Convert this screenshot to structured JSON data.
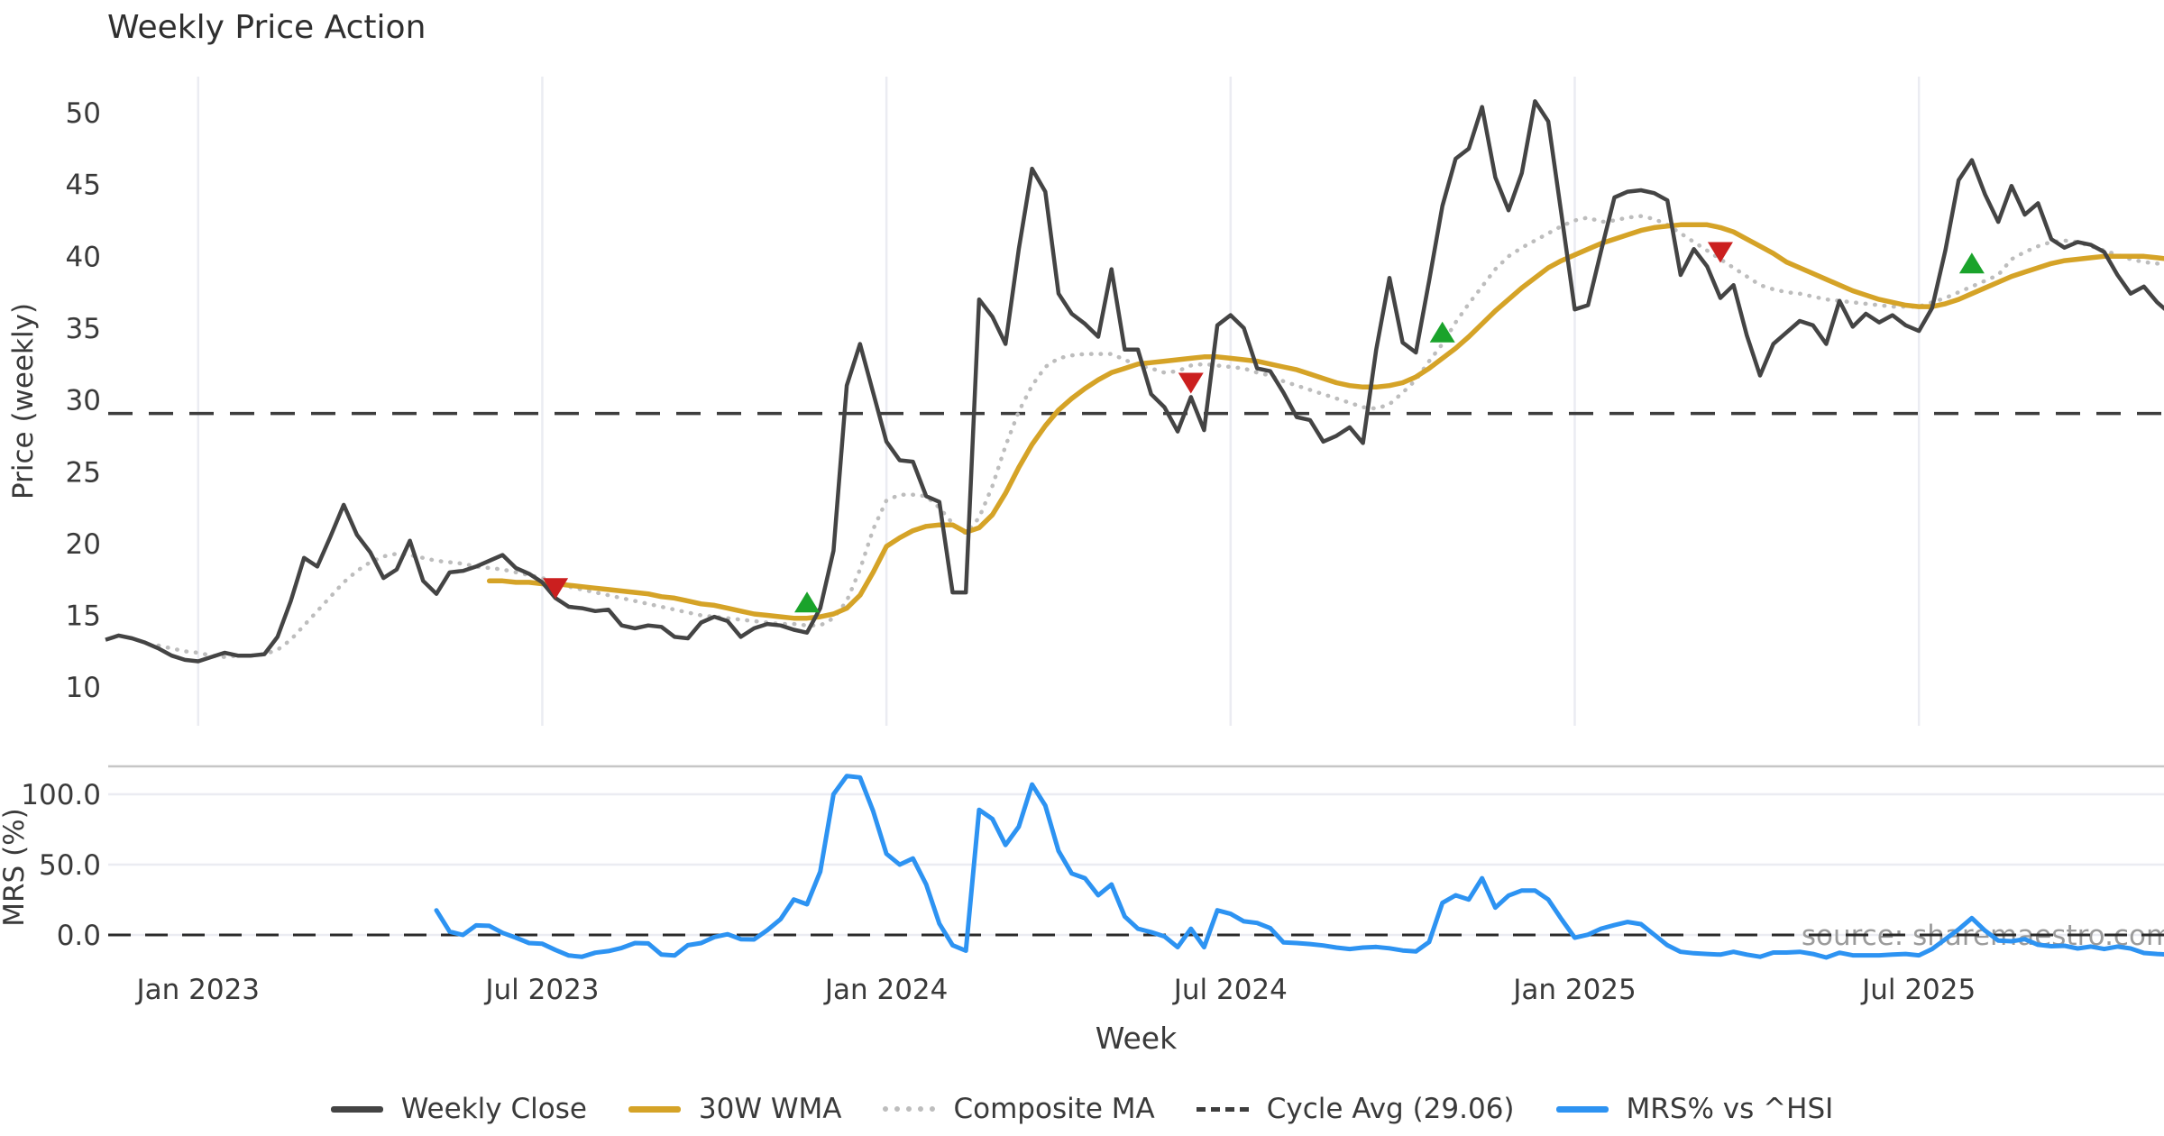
{
  "title": "Weekly Price Action",
  "xlabel": "Week",
  "watermark": "source: sharemaestro.com",
  "colors": {
    "close": "#444444",
    "wma": "#d5a327",
    "composite": "#bdbdbd",
    "cycle": "#3d3d3d",
    "mrs": "#2d93f2",
    "buy": "#1aa32b",
    "sell": "#cb1f1f",
    "grid": "#ebecf2",
    "panel_border": "#c6c6c6",
    "axis_text": "#3a3a3a",
    "watermark_text": "#9b9b9b",
    "title_text": "#2f2f2f"
  },
  "legend": {
    "items": [
      {
        "label": "Weekly Close",
        "swatch": "solid",
        "color_key": "close"
      },
      {
        "label": "30W WMA",
        "swatch": "solid",
        "color_key": "wma"
      },
      {
        "label": "Composite MA",
        "swatch": "dotted",
        "color_key": "composite"
      },
      {
        "label": "Cycle Avg (29.06)",
        "swatch": "dashed",
        "color_key": "cycle"
      },
      {
        "label": "MRS% vs ^HSI",
        "swatch": "solid",
        "color_key": "mrs"
      }
    ]
  },
  "chart_data": [
    {
      "type": "line",
      "panel": "price",
      "title": "Weekly Price Action",
      "ylabel": "Price (weekly)",
      "ylim": [
        9.5,
        52.5
      ],
      "grid": "vertical-only",
      "ytick_values": [
        50,
        45,
        40,
        35,
        30,
        25,
        20,
        15,
        10
      ],
      "xticks": [
        {
          "label": "Jan 2023",
          "week": 7
        },
        {
          "label": "Jul 2023",
          "week": 33
        },
        {
          "label": "Jan 2024",
          "week": 59
        },
        {
          "label": "Jul 2024",
          "week": 85
        },
        {
          "label": "Jan 2025",
          "week": 111
        },
        {
          "label": "Jul 2025",
          "week": 137
        }
      ],
      "cycle_avg": 29.06,
      "series": [
        {
          "name": "Weekly Close",
          "style": "solid",
          "color_key": "close",
          "start_week": 0,
          "values": [
            13.3,
            13.6,
            13.4,
            13.1,
            12.7,
            12.2,
            11.9,
            11.8,
            12.1,
            12.4,
            12.2,
            12.2,
            12.3,
            13.5,
            16.0,
            19.0,
            18.4,
            20.5,
            22.7,
            20.6,
            19.4,
            17.6,
            18.2,
            20.2,
            17.4,
            16.5,
            18.0,
            18.1,
            18.4,
            18.8,
            19.2,
            18.3,
            17.9,
            17.3,
            16.2,
            15.6,
            15.5,
            15.3,
            15.4,
            14.3,
            14.1,
            14.3,
            14.2,
            13.5,
            13.4,
            14.5,
            14.9,
            14.6,
            13.5,
            14.1,
            14.4,
            14.3,
            14.0,
            13.8,
            15.5,
            19.5,
            31.0,
            33.9,
            30.5,
            27.1,
            25.8,
            25.7,
            23.3,
            22.9,
            16.6,
            16.6,
            37.0,
            35.8,
            33.9,
            40.5,
            46.1,
            44.5,
            37.4,
            36.0,
            35.3,
            34.4,
            39.1,
            33.5,
            33.5,
            30.4,
            29.5,
            27.8,
            30.2,
            27.9,
            35.2,
            35.9,
            35.0,
            32.2,
            32.0,
            30.5,
            28.8,
            28.6,
            27.1,
            27.5,
            28.1,
            27.0,
            33.5,
            38.5,
            34.0,
            33.3,
            38.3,
            43.5,
            46.8,
            47.5,
            50.4,
            45.5,
            43.2,
            45.8,
            50.8,
            49.4,
            42.9,
            36.3,
            36.6,
            40.4,
            44.1,
            44.5,
            44.6,
            44.4,
            43.9,
            38.7,
            40.5,
            39.3,
            37.1,
            38.0,
            34.5,
            31.7,
            33.9,
            34.7,
            35.5,
            35.2,
            33.9,
            36.9,
            35.1,
            36.0,
            35.4,
            35.9,
            35.2,
            34.8,
            36.4,
            40.4,
            45.3,
            46.7,
            44.3,
            42.4,
            44.9,
            42.9,
            43.7,
            41.2,
            40.6,
            41.0,
            40.8,
            40.3,
            38.7,
            37.4,
            37.9,
            36.8,
            36.0
          ]
        },
        {
          "name": "30W WMA",
          "style": "solid",
          "color_key": "wma",
          "start_week": 29,
          "values": [
            17.4,
            17.4,
            17.3,
            17.3,
            17.2,
            17.2,
            17.1,
            17.0,
            16.9,
            16.8,
            16.7,
            16.6,
            16.5,
            16.3,
            16.2,
            16.0,
            15.8,
            15.7,
            15.5,
            15.3,
            15.1,
            15.0,
            14.9,
            14.8,
            14.8,
            14.9,
            15.1,
            15.5,
            16.4,
            18.0,
            19.8,
            20.4,
            20.9,
            21.2,
            21.3,
            21.3,
            20.8,
            21.1,
            22.0,
            23.5,
            25.3,
            26.9,
            28.2,
            29.3,
            30.1,
            30.8,
            31.4,
            31.9,
            32.2,
            32.5,
            32.6,
            32.7,
            32.8,
            32.9,
            33.0,
            33.0,
            32.9,
            32.8,
            32.7,
            32.5,
            32.3,
            32.1,
            31.8,
            31.5,
            31.2,
            31.0,
            30.9,
            30.9,
            31.0,
            31.2,
            31.6,
            32.2,
            32.9,
            33.6,
            34.4,
            35.3,
            36.2,
            37.0,
            37.8,
            38.5,
            39.2,
            39.7,
            40.1,
            40.5,
            40.9,
            41.2,
            41.5,
            41.8,
            42.0,
            42.1,
            42.2,
            42.2,
            42.2,
            42.0,
            41.7,
            41.2,
            40.7,
            40.2,
            39.6,
            39.2,
            38.8,
            38.4,
            38.0,
            37.6,
            37.3,
            37.0,
            36.8,
            36.6,
            36.5,
            36.5,
            36.7,
            37.0,
            37.4,
            37.8,
            38.2,
            38.6,
            38.9,
            39.2,
            39.5,
            39.7,
            39.8,
            39.9,
            40.0,
            40.0,
            40.0,
            40.0,
            39.9,
            39.8
          ]
        },
        {
          "name": "Composite MA",
          "style": "dotted",
          "color_key": "composite",
          "start_week": 4,
          "values": [
            12.9,
            12.7,
            12.5,
            12.4,
            12.2,
            12.1,
            12.2,
            12.2,
            12.3,
            12.6,
            13.3,
            14.3,
            15.3,
            16.3,
            17.3,
            18.1,
            18.7,
            19.1,
            19.3,
            19.2,
            19.0,
            18.8,
            18.7,
            18.6,
            18.4,
            18.3,
            18.2,
            18.0,
            17.8,
            17.6,
            17.3,
            17.0,
            16.8,
            16.6,
            16.4,
            16.2,
            16.0,
            15.8,
            15.6,
            15.4,
            15.2,
            15.0,
            14.9,
            14.8,
            14.7,
            14.6,
            14.5,
            14.4,
            14.4,
            14.3,
            14.3,
            14.8,
            16.0,
            18.2,
            21.0,
            23.0,
            23.4,
            23.4,
            23.3,
            22.5,
            21.4,
            20.7,
            21.8,
            24.0,
            26.8,
            29.2,
            31.0,
            32.3,
            32.9,
            33.1,
            33.2,
            33.2,
            33.2,
            32.8,
            32.4,
            32.2,
            31.9,
            32.0,
            32.4,
            32.5,
            32.4,
            32.3,
            32.2,
            31.9,
            31.7,
            31.3,
            31.0,
            30.7,
            30.4,
            30.1,
            29.8,
            29.5,
            29.4,
            29.7,
            30.5,
            31.4,
            32.7,
            33.9,
            35.4,
            36.7,
            37.9,
            39.1,
            40.0,
            40.6,
            41.1,
            41.6,
            42.1,
            42.5,
            42.7,
            42.4,
            42.5,
            42.7,
            42.8,
            42.6,
            42.2,
            41.6,
            41.0,
            40.4,
            39.8,
            39.2,
            38.6,
            38.0,
            37.7,
            37.5,
            37.4,
            37.2,
            37.0,
            36.9,
            36.8,
            36.7,
            36.6,
            36.5,
            36.5,
            36.5,
            36.8,
            37.1,
            37.5,
            37.9,
            38.3,
            38.7,
            39.8,
            40.3,
            40.7,
            41.0,
            41.1,
            41.0,
            40.7,
            40.4,
            40.1,
            39.8,
            39.6,
            39.5,
            39.4
          ]
        }
      ],
      "markers": {
        "sell": [
          {
            "week": 34,
            "price": 16.9
          },
          {
            "week": 82,
            "price": 31.2
          },
          {
            "week": 122,
            "price": 40.3
          }
        ],
        "buy": [
          {
            "week": 53,
            "price": 15.9
          },
          {
            "week": 101,
            "price": 34.7
          },
          {
            "week": 141,
            "price": 39.5
          }
        ]
      }
    },
    {
      "type": "line",
      "panel": "mrs",
      "ylabel": "MRS (%)",
      "ylim": [
        -25,
        120
      ],
      "ytick_values": [
        100,
        50,
        0
      ],
      "ytick_labels": [
        "100.0",
        "50.0",
        "0.0"
      ],
      "zero_line": 0,
      "series": [
        {
          "name": "MRS% vs ^HSI",
          "style": "solid",
          "color_key": "mrs",
          "start_week": 25,
          "values": [
            17.5,
            2.4,
            0.0,
            6.8,
            6.5,
            1.5,
            -1.9,
            -5.8,
            -6.3,
            -10.7,
            -14.6,
            -15.5,
            -12.6,
            -11.5,
            -9.2,
            -5.8,
            -6.0,
            -14.0,
            -14.6,
            -7.3,
            -5.8,
            -1.5,
            0.5,
            -3.0,
            -3.2,
            3.4,
            11.2,
            25.2,
            21.8,
            45.0,
            100.0,
            113.0,
            112.0,
            88.0,
            57.7,
            50.0,
            54.4,
            35.9,
            8.0,
            -7.3,
            -11.2,
            89.0,
            82.5,
            64.0,
            77.0,
            107.0,
            92.0,
            59.7,
            43.7,
            40.3,
            28.2,
            35.9,
            13.1,
            4.4,
            2.0,
            -1.0,
            -8.7,
            4.4,
            -8.7,
            17.5,
            15.0,
            9.7,
            8.5,
            4.9,
            -5.3,
            -5.8,
            -6.5,
            -7.5,
            -9.0,
            -10.0,
            -9.0,
            -8.5,
            -9.5,
            -11.0,
            -11.7,
            -5.0,
            22.8,
            28.2,
            25.2,
            40.3,
            19.4,
            28.0,
            31.6,
            31.6,
            25.2,
            11.2,
            -2.0,
            0.2,
            4.5,
            7.0,
            9.2,
            7.7,
            0.2,
            -7.3,
            -12.0,
            -13.0,
            -13.5,
            -14.0,
            -12.0,
            -14.0,
            -15.5,
            -12.5,
            -12.5,
            -12.0,
            -13.5,
            -16.0,
            -12.6,
            -14.5,
            -14.5,
            -14.5,
            -14.0,
            -13.5,
            -14.5,
            -10.0,
            -3.0,
            4.0,
            12.0,
            3.0,
            -4.0,
            -4.5,
            -3.0,
            -7.0,
            -8.0,
            -7.7,
            -9.6,
            -8.3,
            -10.0,
            -8.3,
            -9.6,
            -12.8,
            -13.5,
            -14.0
          ]
        }
      ]
    }
  ]
}
